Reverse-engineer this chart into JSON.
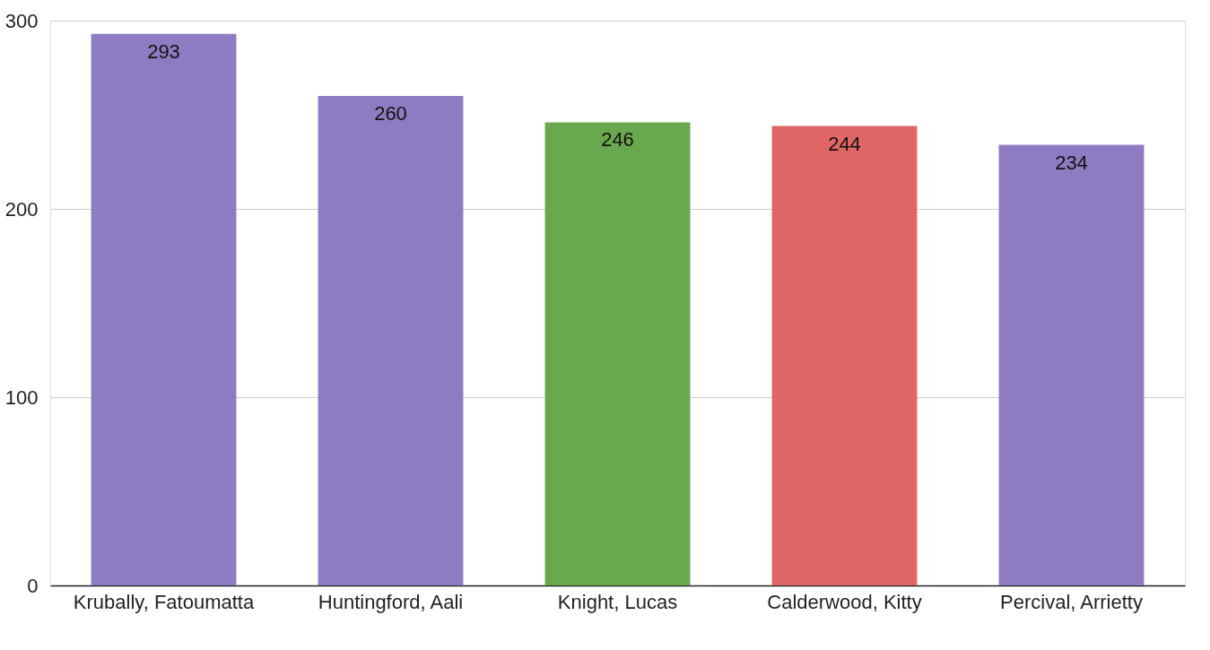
{
  "chart_data": {
    "type": "bar",
    "categories": [
      "Krubally, Fatoumatta",
      "Huntingford, Aali",
      "Knight, Lucas",
      "Calderwood, Kitty",
      "Percival, Arrietty"
    ],
    "values": [
      293,
      260,
      246,
      244,
      234
    ],
    "colors": [
      "#8e7cc3",
      "#8e7cc3",
      "#6aa84f",
      "#e06666",
      "#8e7cc3"
    ],
    "ylim": [
      0,
      300
    ],
    "yticks": [
      0,
      100,
      200,
      300
    ],
    "grid": "y",
    "data_labels": true
  }
}
